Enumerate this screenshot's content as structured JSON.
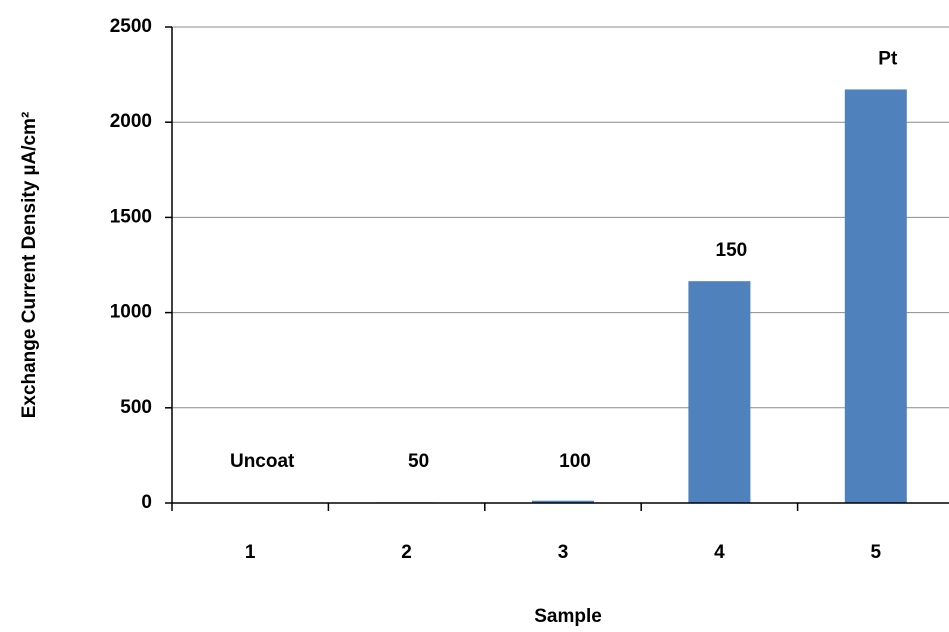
{
  "chart_data": {
    "type": "bar",
    "x_label": "Sample",
    "y_label": "Exchange Current Density µA/cm²",
    "categories": [
      "1",
      "2",
      "3",
      "4",
      "5"
    ],
    "values": [
      2,
      3,
      12,
      1165,
      2172
    ],
    "bar_annotations": [
      "Uncoat",
      "50",
      "100",
      "150",
      "Pt"
    ],
    "color": "#4f81bd",
    "ylim": [
      0,
      2500
    ],
    "yticks": [
      0,
      500,
      1000,
      1500,
      2000,
      2500
    ],
    "grid": true
  }
}
